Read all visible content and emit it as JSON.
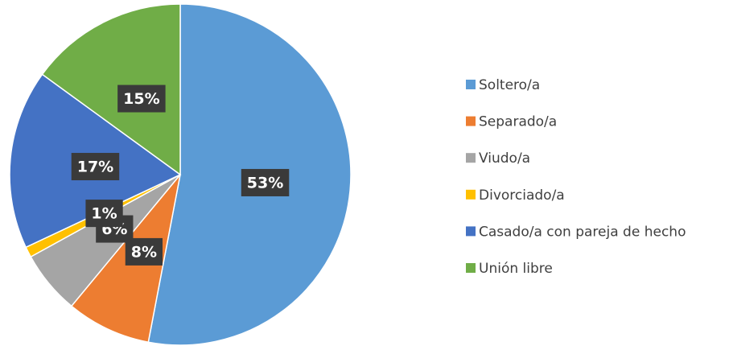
{
  "chart_data": {
    "type": "pie",
    "categories": [
      "Soltero/a",
      "Separado/a",
      "Viudo/a",
      "Divorciado/a",
      "Casado/a con pareja de hecho",
      "Unión libre"
    ],
    "values": [
      53,
      8,
      6,
      1,
      17,
      15
    ],
    "value_labels": [
      "53%",
      "8%",
      "6%",
      "1%",
      "17%",
      "15%"
    ],
    "colors": [
      "#5b9bd5",
      "#ed7d31",
      "#a5a5a5",
      "#ffc000",
      "#4472c4",
      "#70ad47"
    ],
    "legend": "right"
  }
}
